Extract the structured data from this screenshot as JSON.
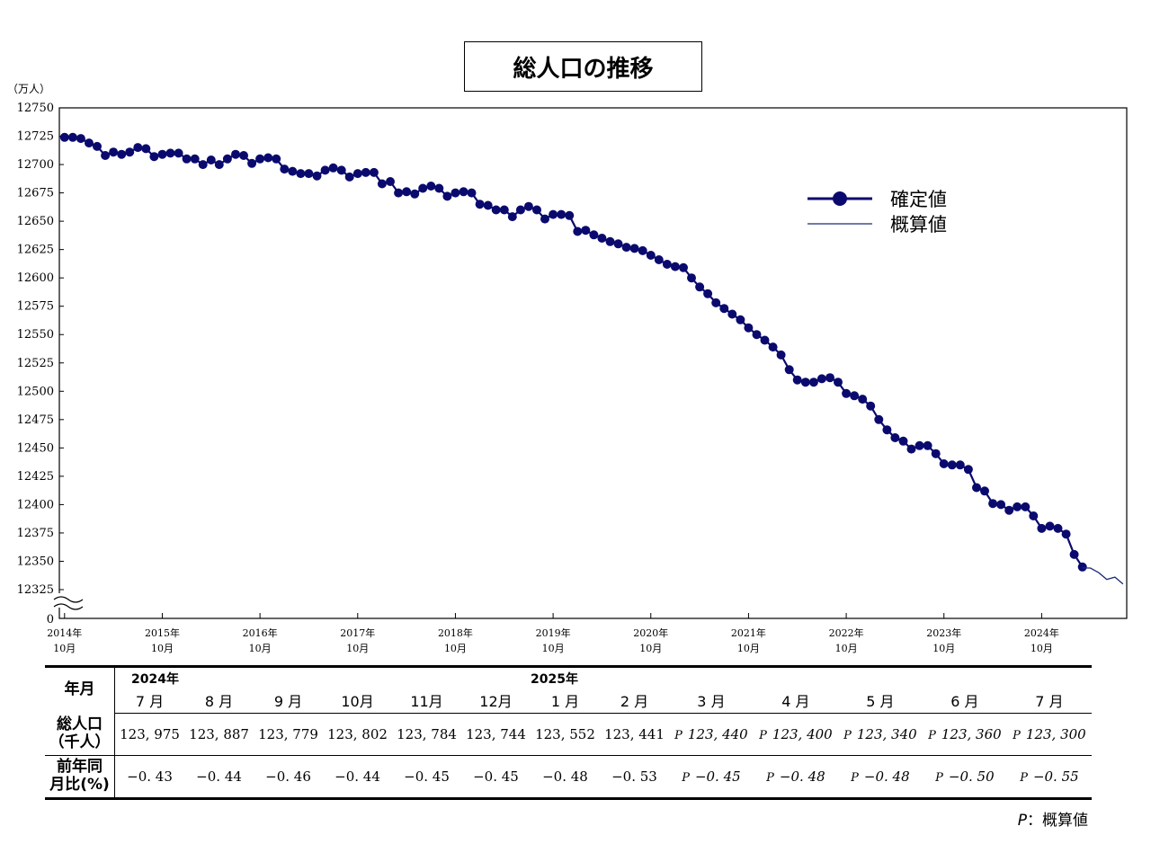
{
  "title": "総人口の推移",
  "footnote": {
    "symbol": "P",
    "text": "：概算値"
  },
  "chart_data": {
    "type": "line",
    "title": "総人口の推移",
    "ylabel": "（万人）",
    "ylim": [
      12325,
      12750
    ],
    "y_ticks": [
      12750,
      12725,
      12700,
      12675,
      12650,
      12625,
      12600,
      12575,
      12550,
      12525,
      12500,
      12475,
      12450,
      12425,
      12400,
      12375,
      12350,
      12325
    ],
    "y_baseline_label": "0",
    "axis_break": true,
    "x_ticks": [
      {
        "year": "2014年",
        "month": "10月"
      },
      {
        "year": "2015年",
        "month": "10月"
      },
      {
        "year": "2016年",
        "month": "10月"
      },
      {
        "year": "2017年",
        "month": "10月"
      },
      {
        "year": "2018年",
        "month": "10月"
      },
      {
        "year": "2019年",
        "month": "10月"
      },
      {
        "year": "2020年",
        "month": "10月"
      },
      {
        "year": "2021年",
        "month": "10月"
      },
      {
        "year": "2022年",
        "month": "10月"
      },
      {
        "year": "2023年",
        "month": "10月"
      },
      {
        "year": "2024年",
        "month": "10月"
      }
    ],
    "x_start": "2014-10",
    "legend": {
      "position": "upper-right"
    },
    "series": [
      {
        "name": "確定値",
        "color": "#0a0a6e",
        "style": "line-with-markers",
        "values": [
          12724,
          12724,
          12723,
          12719,
          12716,
          12708,
          12711,
          12709,
          12711,
          12715,
          12714,
          12707,
          12709,
          12710,
          12710,
          12705,
          12705,
          12700,
          12704,
          12700,
          12705,
          12709,
          12708,
          12701,
          12705,
          12706,
          12705,
          12696,
          12694,
          12692,
          12692,
          12690,
          12695,
          12697,
          12695,
          12689,
          12692,
          12693,
          12693,
          12683,
          12685,
          12675,
          12676,
          12674,
          12679,
          12681,
          12679,
          12672,
          12675,
          12676,
          12675,
          12665,
          12664,
          12660,
          12660,
          12654,
          12660,
          12663,
          12660,
          12652,
          12656,
          12656,
          12655,
          12641,
          12642,
          12638,
          12635,
          12632,
          12630,
          12627,
          12626,
          12624,
          12620,
          12616,
          12612,
          12610,
          12609,
          12600,
          12592,
          12586,
          12578,
          12573,
          12568,
          12563,
          12556,
          12550,
          12545,
          12539,
          12532,
          12519,
          12510,
          12508,
          12508,
          12511,
          12512,
          12508,
          12498,
          12496,
          12493,
          12487,
          12475,
          12466,
          12459,
          12456,
          12449,
          12452,
          12452,
          12445,
          12436,
          12435,
          12435,
          12431,
          12415,
          12412,
          12401,
          12400,
          12395,
          12398,
          12398,
          12390,
          12379,
          12381,
          12379,
          12374,
          12356,
          12345
        ]
      },
      {
        "name": "概算値",
        "color": "#1a2a78",
        "style": "line",
        "values": [
          null,
          null,
          null,
          null,
          null,
          null,
          null,
          null,
          null,
          null,
          null,
          null,
          null,
          null,
          null,
          null,
          null,
          null,
          null,
          null,
          null,
          null,
          null,
          null,
          null,
          null,
          null,
          null,
          null,
          null,
          null,
          null,
          null,
          null,
          null,
          null,
          null,
          null,
          null,
          null,
          null,
          null,
          null,
          null,
          null,
          null,
          null,
          null,
          null,
          null,
          null,
          null,
          null,
          null,
          null,
          null,
          null,
          null,
          null,
          null,
          null,
          null,
          null,
          null,
          null,
          null,
          null,
          null,
          null,
          null,
          null,
          null,
          null,
          null,
          null,
          null,
          null,
          null,
          null,
          null,
          null,
          null,
          null,
          null,
          null,
          null,
          null,
          null,
          null,
          null,
          null,
          null,
          null,
          null,
          null,
          null,
          null,
          null,
          null,
          null,
          null,
          null,
          null,
          null,
          null,
          null,
          null,
          null,
          null,
          null,
          null,
          null,
          null,
          null,
          null,
          null,
          null,
          null,
          null,
          null,
          null,
          null,
          null,
          null,
          null,
          12344.1,
          12344.0,
          12340.0,
          12334.0,
          12336.0,
          12330.0
        ]
      }
    ]
  },
  "table": {
    "row_headers": {
      "month": "年月",
      "population": [
        "総人口",
        "（千人）"
      ],
      "yoy": [
        "前年同",
        "月比(%)"
      ]
    },
    "years": [
      {
        "label": "2024年",
        "col": 0
      },
      {
        "label": "2025年",
        "col": 3
      }
    ],
    "months": [
      "7 月",
      "8 月",
      "9 月",
      "10月",
      "11月",
      "12月",
      "1 月",
      "2 月",
      "3 月",
      "4 月",
      "5 月",
      "6 月",
      "7 月"
    ],
    "population": [
      "123, 975",
      "123, 887",
      "123, 779",
      "123, 802",
      "123, 784",
      "123, 744",
      "123, 552",
      "123, 441",
      "123, 440",
      "123, 400",
      "123, 340",
      "123, 360",
      "123, 300"
    ],
    "yoy": [
      "−0. 43",
      "−0. 44",
      "−0. 46",
      "−0. 44",
      "−0. 45",
      "−0. 45",
      "−0. 48",
      "−0. 53",
      "−0. 45",
      "−0. 48",
      "−0. 48",
      "−0. 50",
      "−0. 55"
    ],
    "provisional": [
      false,
      false,
      false,
      false,
      false,
      false,
      false,
      false,
      true,
      true,
      true,
      true,
      true
    ],
    "provisional_symbol": "P"
  }
}
